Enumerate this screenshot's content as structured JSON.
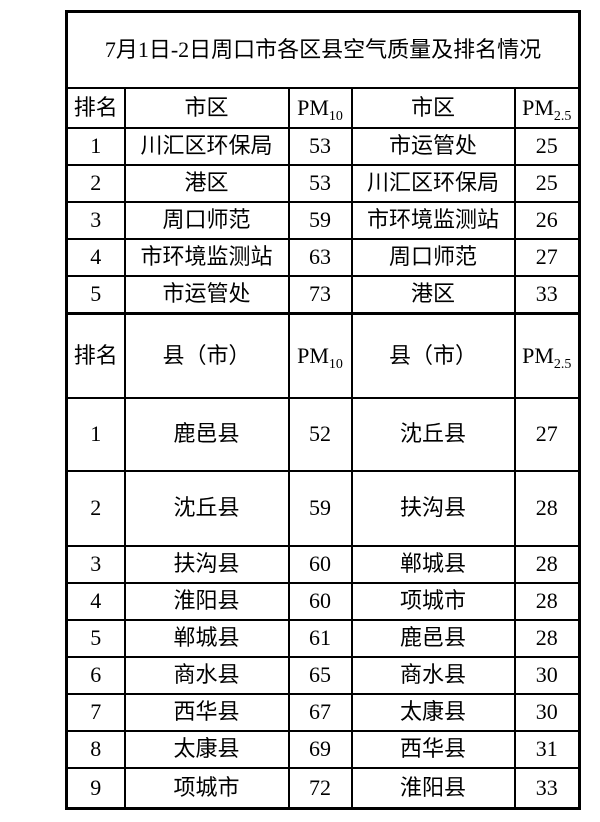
{
  "title": "7月1日-2日周口市各区县空气质量及排名情况",
  "sections": [
    {
      "header": {
        "rank": "排名",
        "area_left": "市区",
        "pm10_base": "PM",
        "pm10_sub": "10",
        "area_right": "市区",
        "pm25_base": "PM",
        "pm25_sub": "2.5"
      },
      "rows": [
        [
          "1",
          "川汇区环保局",
          "53",
          "市运管处",
          "25"
        ],
        [
          "2",
          "港区",
          "53",
          "川汇区环保局",
          "25"
        ],
        [
          "3",
          "周口师范",
          "59",
          "市环境监测站",
          "26"
        ],
        [
          "4",
          "市环境监测站",
          "63",
          "周口师范",
          "27"
        ],
        [
          "5",
          "市运管处",
          "73",
          "港区",
          "33"
        ]
      ]
    },
    {
      "header": {
        "rank": "排名",
        "area_left": "县（市）",
        "pm10_base": "PM",
        "pm10_sub": "10",
        "area_right": "县（市）",
        "pm25_base": "PM",
        "pm25_sub": "2.5"
      },
      "rows": [
        [
          "1",
          "鹿邑县",
          "52",
          "沈丘县",
          "27"
        ],
        [
          "2",
          "沈丘县",
          "59",
          "扶沟县",
          "28"
        ],
        [
          "3",
          "扶沟县",
          "60",
          "郸城县",
          "28"
        ],
        [
          "4",
          "淮阳县",
          "60",
          "项城市",
          "28"
        ],
        [
          "5",
          "郸城县",
          "61",
          "鹿邑县",
          "28"
        ],
        [
          "6",
          "商水县",
          "65",
          "商水县",
          "30"
        ],
        [
          "7",
          "西华县",
          "67",
          "太康县",
          "30"
        ],
        [
          "8",
          "太康县",
          "69",
          "西华县",
          "31"
        ],
        [
          "9",
          "项城市",
          "72",
          "淮阳县",
          "33"
        ]
      ]
    }
  ],
  "chart_data": [
    {
      "type": "table",
      "title": "7月1日-2日周口市各区县空气质量及排名情况",
      "columns": [
        "排名",
        "市区",
        "PM10",
        "市区",
        "PM2.5"
      ],
      "rows": [
        [
          1,
          "川汇区环保局",
          53,
          "市运管处",
          25
        ],
        [
          2,
          "港区",
          53,
          "川汇区环保局",
          25
        ],
        [
          3,
          "周口师范",
          59,
          "市环境监测站",
          26
        ],
        [
          4,
          "市环境监测站",
          63,
          "周口师范",
          27
        ],
        [
          5,
          "市运管处",
          73,
          "港区",
          33
        ]
      ]
    },
    {
      "type": "table",
      "title": "7月1日-2日周口市各区县空气质量及排名情况",
      "columns": [
        "排名",
        "县（市）",
        "PM10",
        "县（市）",
        "PM2.5"
      ],
      "rows": [
        [
          1,
          "鹿邑县",
          52,
          "沈丘县",
          27
        ],
        [
          2,
          "沈丘县",
          59,
          "扶沟县",
          28
        ],
        [
          3,
          "扶沟县",
          60,
          "郸城县",
          28
        ],
        [
          4,
          "淮阳县",
          60,
          "项城市",
          28
        ],
        [
          5,
          "郸城县",
          61,
          "鹿邑县",
          28
        ],
        [
          6,
          "商水县",
          65,
          "商水县",
          30
        ],
        [
          7,
          "西华县",
          67,
          "太康县",
          30
        ],
        [
          8,
          "太康县",
          69,
          "西华县",
          31
        ],
        [
          9,
          "项城市",
          72,
          "淮阳县",
          33
        ]
      ]
    }
  ],
  "colors": {
    "background": "#ffffff",
    "border": "#000000",
    "text": "#000000"
  }
}
